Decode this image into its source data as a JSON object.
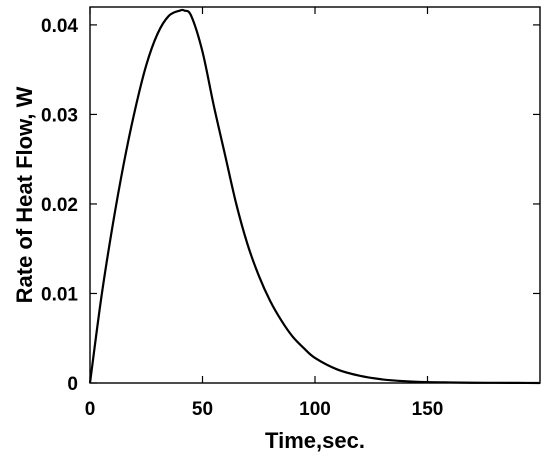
{
  "chart_data": {
    "type": "line",
    "title": "",
    "xlabel": "Time,sec.",
    "ylabel": "Rate of Heat Flow, W",
    "xlim": [
      0,
      200
    ],
    "ylim": [
      0,
      0.042
    ],
    "xticks": [
      0,
      50,
      100,
      150
    ],
    "xtick_labels": [
      "0",
      "50",
      "100",
      "150"
    ],
    "yticks": [
      0,
      0.01,
      0.02,
      0.03,
      0.04
    ],
    "ytick_labels": [
      "0",
      "0.01",
      "0.02",
      "0.03",
      "0.04"
    ],
    "grid": false,
    "legend": "none",
    "line_color": "#000000",
    "series": [
      {
        "x": [
          0,
          5,
          10,
          15,
          20,
          25,
          30,
          35,
          40,
          42,
          45,
          50,
          55,
          60,
          65,
          70,
          75,
          80,
          85,
          90,
          95,
          100,
          110,
          120,
          130,
          140,
          150,
          160,
          170,
          180,
          190,
          200
        ],
        "y": [
          0,
          0.0095,
          0.0175,
          0.0245,
          0.0305,
          0.0355,
          0.039,
          0.041,
          0.0416,
          0.0416,
          0.041,
          0.037,
          0.031,
          0.0255,
          0.02,
          0.0155,
          0.012,
          0.0092,
          0.007,
          0.0052,
          0.0039,
          0.0028,
          0.0015,
          0.0008,
          0.0004,
          0.0002,
          0.0001,
          6e-05,
          3e-05,
          2e-05,
          1e-05,
          0.0
        ]
      }
    ]
  }
}
